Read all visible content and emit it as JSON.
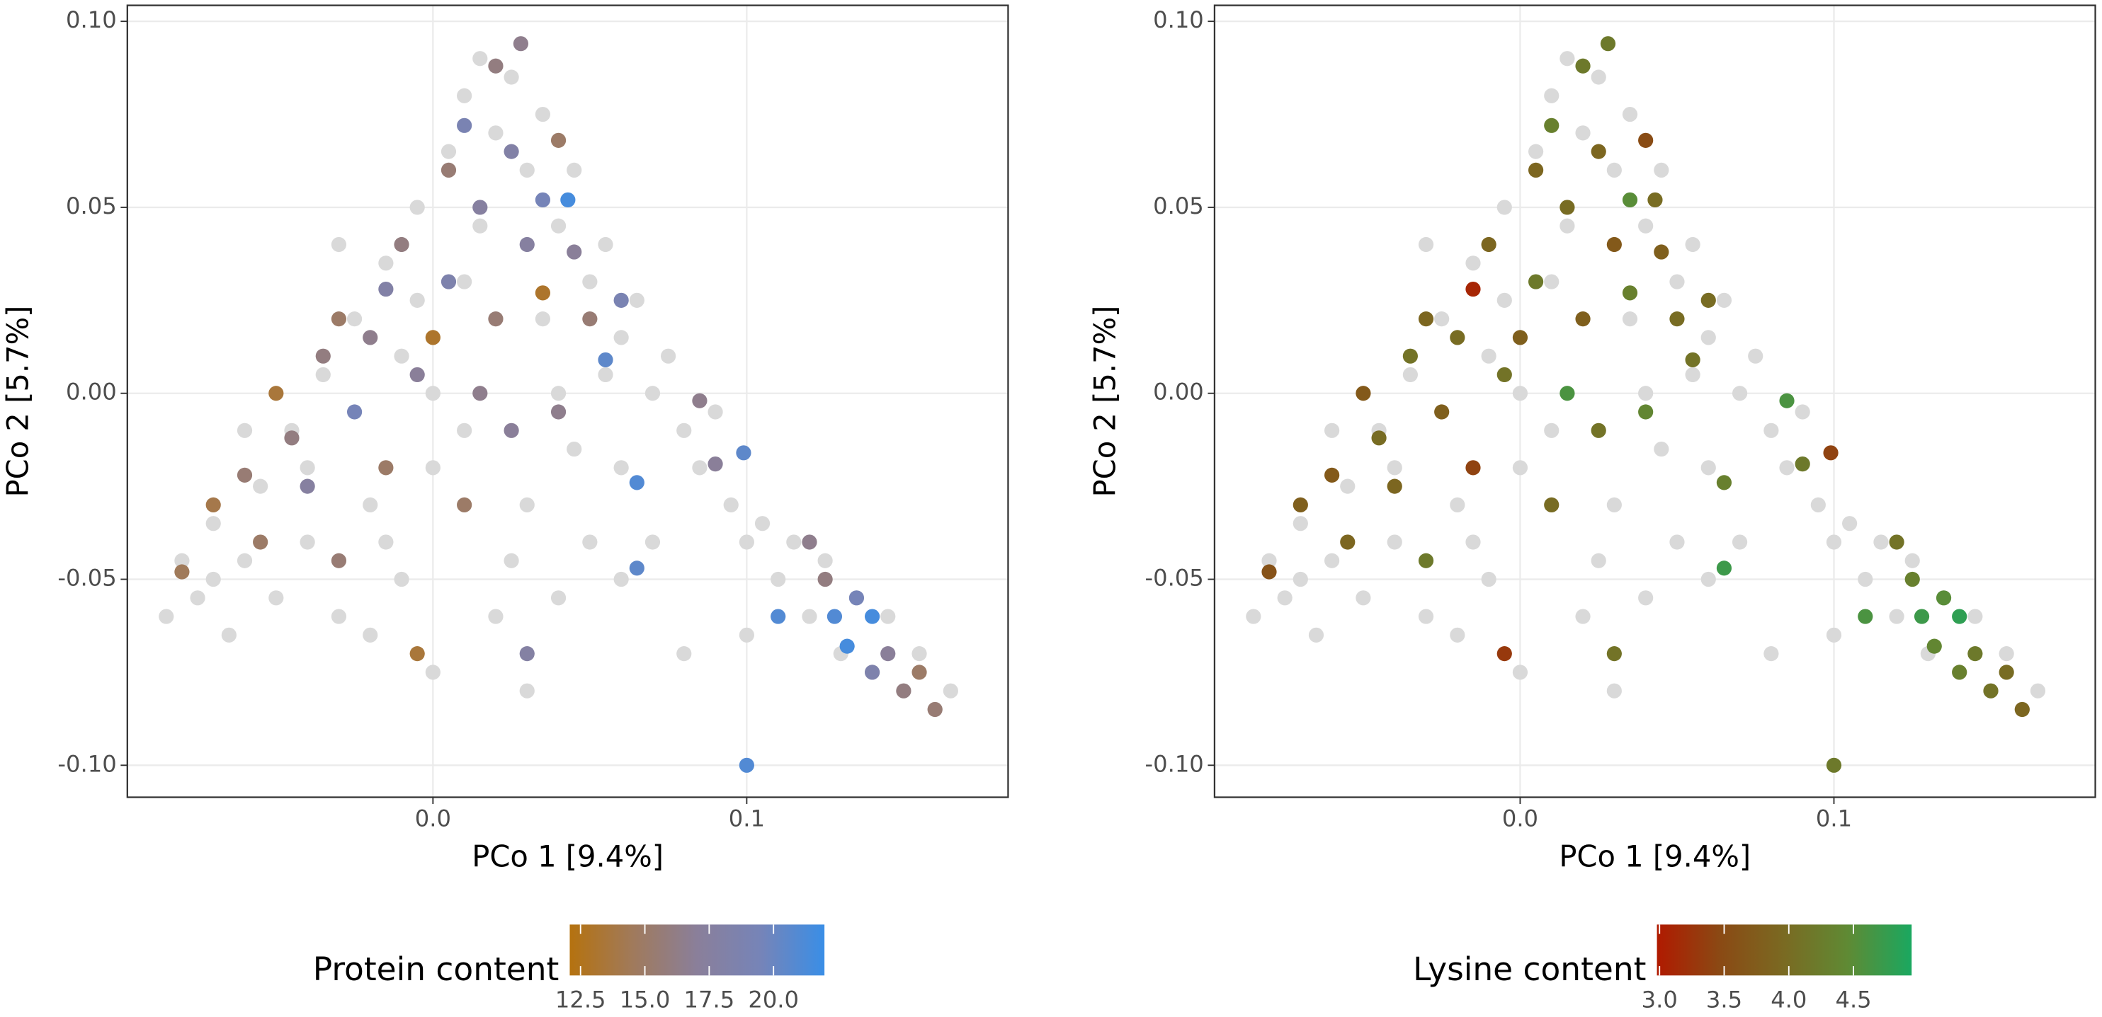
{
  "chart_data": [
    {
      "type": "scatter",
      "xlabel": "PCo 1 [9.4%]",
      "ylabel": "PCo 2 [5.7%]",
      "xlim": [
        -0.0974,
        0.1833
      ],
      "ylim": [
        -0.1086,
        0.1043
      ],
      "xticks": [
        {
          "value": 0,
          "label": "0.0"
        },
        0.1
      ],
      "yticks": [
        {
          "value": -0.1,
          "label": "-0.10"
        },
        {
          "value": -0.05,
          "label": "-0.05"
        },
        {
          "value": 0,
          "label": "0.00"
        },
        {
          "value": 0.05,
          "label": "0.05"
        },
        {
          "value": 0.1,
          "label": "0.10"
        }
      ],
      "grid": true,
      "series": [
        {
          "color": "#d9d9d9",
          "x": [
            -0.085,
            -0.08,
            -0.075,
            -0.07,
            -0.065,
            -0.06,
            -0.055,
            -0.05,
            -0.045,
            -0.04,
            -0.035,
            -0.03,
            -0.025,
            -0.02,
            -0.015,
            -0.01,
            -0.005,
            0.0,
            0.005,
            0.01,
            0.015,
            0.02,
            0.025,
            0.03,
            0.035,
            0.04,
            0.045,
            0.05,
            0.055,
            0.06,
            0.065,
            0.07,
            0.075,
            0.08,
            0.085,
            0.09,
            0.095,
            0.1,
            0.105,
            0.11,
            0.115,
            0.12,
            0.125,
            0.13,
            0.135,
            0.14,
            0.145,
            0.15,
            0.155,
            0.16,
            0.165,
            0.0,
            -0.01,
            0.01,
            0.02,
            0.03,
            0.04,
            0.05,
            0.06,
            -0.02,
            0.0,
            0.02,
            0.04,
            0.06,
            0.07,
            -0.03,
            -0.005,
            0.015,
            0.035,
            0.045,
            0.025,
            -0.04,
            -0.06,
            -0.07,
            0.08,
            0.1,
            0.03,
            0.01,
            -0.015,
            0.055
          ],
          "y": [
            -0.06,
            -0.045,
            -0.055,
            -0.035,
            -0.065,
            -0.045,
            -0.025,
            -0.055,
            -0.01,
            -0.04,
            0.005,
            -0.06,
            0.02,
            -0.03,
            0.035,
            -0.05,
            0.05,
            -0.02,
            0.065,
            0.08,
            0.09,
            0.07,
            0.085,
            0.06,
            0.075,
            0.045,
            0.06,
            0.03,
            0.04,
            0.015,
            0.025,
            0.0,
            0.01,
            -0.01,
            -0.02,
            -0.005,
            -0.03,
            -0.04,
            -0.035,
            -0.05,
            -0.04,
            -0.06,
            -0.045,
            -0.07,
            -0.055,
            -0.075,
            -0.06,
            -0.08,
            -0.07,
            -0.085,
            -0.08,
            0.0,
            0.01,
            -0.01,
            0.02,
            -0.03,
            0.0,
            -0.04,
            -0.02,
            -0.065,
            -0.075,
            -0.06,
            -0.055,
            -0.05,
            -0.04,
            0.04,
            0.025,
            0.045,
            0.02,
            -0.015,
            -0.045,
            -0.02,
            -0.01,
            -0.05,
            -0.07,
            -0.065,
            -0.08,
            0.03,
            -0.04,
            0.005
          ]
        },
        {
          "x": [
            -0.08,
            -0.07,
            -0.06,
            -0.055,
            -0.05,
            -0.045,
            -0.04,
            -0.035,
            -0.03,
            -0.03,
            -0.025,
            -0.02,
            -0.015,
            -0.015,
            -0.01,
            -0.005,
            -0.005,
            0.0,
            0.005,
            0.005,
            0.01,
            0.01,
            0.015,
            0.015,
            0.02,
            0.02,
            0.025,
            0.025,
            0.028,
            0.03,
            0.03,
            0.035,
            0.035,
            0.04,
            0.04,
            0.043,
            0.045,
            0.05,
            0.055,
            0.06,
            0.065,
            0.065,
            0.085,
            0.09,
            0.099,
            0.1,
            0.11,
            0.12,
            0.125,
            0.128,
            0.132,
            0.135,
            0.14,
            0.14,
            0.145,
            0.15,
            0.155,
            0.16
          ],
          "y": [
            -0.048,
            -0.03,
            -0.022,
            -0.04,
            0.0,
            -0.012,
            -0.025,
            0.01,
            0.02,
            -0.045,
            -0.005,
            0.015,
            0.028,
            -0.02,
            0.04,
            0.005,
            -0.07,
            0.015,
            0.03,
            0.06,
            -0.03,
            0.072,
            0.05,
            0.0,
            0.088,
            0.02,
            0.065,
            -0.01,
            0.094,
            0.04,
            -0.07,
            0.052,
            0.027,
            0.068,
            -0.005,
            0.052,
            0.038,
            0.02,
            0.009,
            0.025,
            -0.024,
            -0.047,
            -0.002,
            -0.019,
            -0.016,
            -0.1,
            -0.06,
            -0.04,
            -0.05,
            -0.06,
            -0.068,
            -0.055,
            -0.06,
            -0.075,
            -0.07,
            -0.08,
            -0.075,
            -0.085
          ],
          "values": [
            14.5,
            14,
            15.5,
            15,
            13.5,
            16,
            17.5,
            16,
            15,
            15.5,
            19.5,
            16.5,
            18,
            15,
            16,
            17,
            13.5,
            13,
            18.5,
            15.5,
            15,
            19,
            17.5,
            16.5,
            16,
            15.5,
            18,
            17,
            16.5,
            17.5,
            17.8,
            19.5,
            13,
            15,
            16.5,
            21.5,
            17,
            15.5,
            20.5,
            19,
            21,
            20.5,
            16.5,
            17,
            20.5,
            21,
            21,
            16.5,
            16,
            21,
            21.5,
            19.5,
            21.5,
            18.5,
            17,
            16,
            15,
            15.5
          ]
        }
      ],
      "colorbar": {
        "title": "Protein content",
        "lim": [
          12.08,
          21.98
        ],
        "colors": [
          "#b5720f",
          "#a07a5c",
          "#8a7f9a",
          "#7684b8",
          "#3a8ee6"
        ],
        "ticks": [
          12.5,
          {
            "value": 15,
            "label": "15.0"
          },
          17.5,
          {
            "value": 20,
            "label": "20.0"
          }
        ]
      }
    },
    {
      "type": "scatter",
      "xlabel": "PCo 1 [9.4%]",
      "ylabel": "PCo 2 [5.7%]",
      "xlim": [
        -0.0974,
        0.1833
      ],
      "ylim": [
        -0.1086,
        0.1043
      ],
      "xticks": [
        {
          "value": 0,
          "label": "0.0"
        },
        0.1
      ],
      "yticks": [
        {
          "value": -0.1,
          "label": "-0.10"
        },
        {
          "value": -0.05,
          "label": "-0.05"
        },
        {
          "value": 0,
          "label": "0.00"
        },
        {
          "value": 0.05,
          "label": "0.05"
        },
        {
          "value": 0.1,
          "label": "0.10"
        }
      ],
      "grid": true,
      "series": [
        {
          "color": "#d9d9d9",
          "x": [
            -0.085,
            -0.08,
            -0.075,
            -0.07,
            -0.065,
            -0.06,
            -0.055,
            -0.05,
            -0.045,
            -0.04,
            -0.035,
            -0.03,
            -0.025,
            -0.02,
            -0.015,
            -0.01,
            -0.005,
            0.0,
            0.005,
            0.01,
            0.015,
            0.02,
            0.025,
            0.03,
            0.035,
            0.04,
            0.045,
            0.05,
            0.055,
            0.06,
            0.065,
            0.07,
            0.075,
            0.08,
            0.085,
            0.09,
            0.095,
            0.1,
            0.105,
            0.11,
            0.115,
            0.12,
            0.125,
            0.13,
            0.135,
            0.14,
            0.145,
            0.15,
            0.155,
            0.16,
            0.165,
            0.0,
            -0.01,
            0.01,
            0.02,
            0.03,
            0.04,
            0.05,
            0.06,
            -0.02,
            0.0,
            0.02,
            0.04,
            0.06,
            0.07,
            -0.03,
            -0.005,
            0.015,
            0.035,
            0.045,
            0.025,
            -0.04,
            -0.06,
            -0.07,
            0.08,
            0.1,
            0.03,
            0.01,
            -0.015,
            0.055
          ],
          "y": [
            -0.06,
            -0.045,
            -0.055,
            -0.035,
            -0.065,
            -0.045,
            -0.025,
            -0.055,
            -0.01,
            -0.04,
            0.005,
            -0.06,
            0.02,
            -0.03,
            0.035,
            -0.05,
            0.05,
            -0.02,
            0.065,
            0.08,
            0.09,
            0.07,
            0.085,
            0.06,
            0.075,
            0.045,
            0.06,
            0.03,
            0.04,
            0.015,
            0.025,
            0.0,
            0.01,
            -0.01,
            -0.02,
            -0.005,
            -0.03,
            -0.04,
            -0.035,
            -0.05,
            -0.04,
            -0.06,
            -0.045,
            -0.07,
            -0.055,
            -0.075,
            -0.06,
            -0.08,
            -0.07,
            -0.085,
            -0.08,
            0.0,
            0.01,
            -0.01,
            0.02,
            -0.03,
            0.0,
            -0.04,
            -0.02,
            -0.065,
            -0.075,
            -0.06,
            -0.055,
            -0.05,
            -0.04,
            0.04,
            0.025,
            0.045,
            0.02,
            -0.015,
            -0.045,
            -0.02,
            -0.01,
            -0.05,
            -0.07,
            -0.065,
            -0.08,
            0.03,
            -0.04,
            0.005
          ]
        },
        {
          "x": [
            -0.08,
            -0.07,
            -0.06,
            -0.055,
            -0.05,
            -0.045,
            -0.04,
            -0.035,
            -0.03,
            -0.03,
            -0.025,
            -0.02,
            -0.015,
            -0.015,
            -0.01,
            -0.005,
            -0.005,
            0.0,
            0.005,
            0.005,
            0.01,
            0.01,
            0.015,
            0.015,
            0.02,
            0.02,
            0.025,
            0.025,
            0.028,
            0.03,
            0.03,
            0.035,
            0.035,
            0.04,
            0.04,
            0.043,
            0.045,
            0.05,
            0.055,
            0.06,
            0.065,
            0.065,
            0.085,
            0.09,
            0.099,
            0.1,
            0.11,
            0.12,
            0.125,
            0.128,
            0.132,
            0.135,
            0.14,
            0.14,
            0.145,
            0.15,
            0.155,
            0.16
          ],
          "y": [
            -0.048,
            -0.03,
            -0.022,
            -0.04,
            0.0,
            -0.012,
            -0.025,
            0.01,
            0.02,
            -0.045,
            -0.005,
            0.015,
            0.028,
            -0.02,
            0.04,
            0.005,
            -0.07,
            0.015,
            0.03,
            0.06,
            -0.03,
            0.072,
            0.05,
            0.0,
            0.088,
            0.02,
            0.065,
            -0.01,
            0.094,
            0.04,
            -0.07,
            0.052,
            0.027,
            0.068,
            -0.005,
            0.052,
            0.038,
            0.02,
            0.009,
            0.025,
            -0.024,
            -0.047,
            -0.002,
            -0.019,
            -0.016,
            -0.1,
            -0.06,
            -0.04,
            -0.05,
            -0.06,
            -0.068,
            -0.055,
            -0.06,
            -0.075,
            -0.07,
            -0.08,
            -0.075,
            -0.085
          ],
          "values": [
            3.6,
            3.8,
            3.7,
            3.9,
            3.7,
            4.0,
            3.9,
            4.1,
            3.9,
            4.2,
            3.8,
            4.0,
            3.1,
            3.4,
            3.9,
            4.1,
            3.3,
            3.8,
            4.2,
            3.9,
            4.0,
            4.3,
            4.0,
            4.6,
            4.2,
            3.8,
            3.9,
            4.1,
            4.2,
            3.7,
            4.1,
            4.5,
            4.3,
            3.5,
            4.4,
            4.0,
            3.8,
            4.0,
            4.1,
            4.0,
            4.3,
            4.7,
            4.6,
            4.2,
            3.4,
            4.2,
            4.6,
            4.1,
            4.3,
            4.7,
            4.4,
            4.5,
            4.8,
            4.3,
            4.2,
            4.1,
            4.0,
            3.9
          ]
        }
      ],
      "colorbar": {
        "title": "Lysine content",
        "lim": [
          2.98,
          4.95
        ],
        "colors": [
          "#b01a00",
          "#8a4a14",
          "#7a6a22",
          "#5f8a34",
          "#1aa860"
        ],
        "ticks": [
          {
            "value": 3,
            "label": "3.0"
          },
          3.5,
          {
            "value": 4,
            "label": "4.0"
          },
          4.5
        ]
      }
    }
  ]
}
